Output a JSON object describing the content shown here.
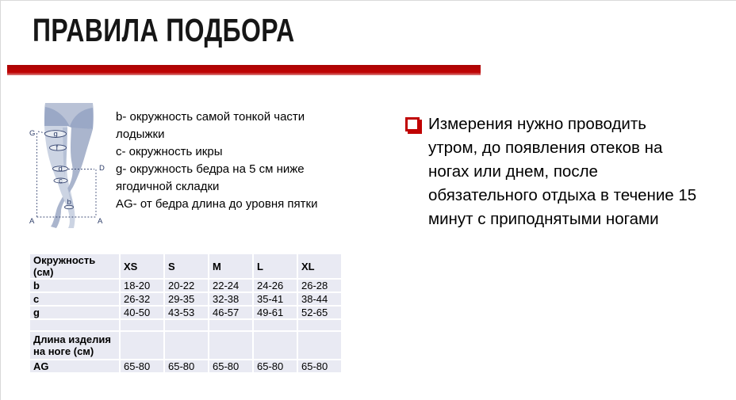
{
  "slide": {
    "title": "ПРАВИЛА ПОДБОРА"
  },
  "colors": {
    "accent_red": "#c00404",
    "bullet_red": "#c00202",
    "table_cell_bg": "#e9eaf3",
    "diagram_navy": "#2c3c68",
    "leg_light": "#ccd4e3",
    "leg_shade": "#aab5cd"
  },
  "diagram": {
    "labels": {
      "G": "G",
      "g": "g",
      "f": "f",
      "d": "d",
      "D": "D",
      "c": "c",
      "b": "b",
      "A_left": "A",
      "A_right": "A"
    }
  },
  "legend": {
    "items": [
      "b- окружность самой тонкой части лодыжки",
      "c- окружность икры",
      "g- окружность бедра на 5 см ниже ягодичной складки",
      "AG- от бедра длина до уровня пятки"
    ]
  },
  "note": {
    "lines": [
      "Измерения нужно проводить",
      "утром, до появления отеков на",
      "ногах или днем, после",
      "обязательного отдыха в течение 15",
      "минут с приподнятыми ногами"
    ]
  },
  "size_table": {
    "headers": [
      "Окружность (см)",
      "XS",
      "S",
      "M",
      "L",
      "XL"
    ],
    "rows": [
      {
        "label": "b",
        "values": [
          "18-20",
          "20-22",
          "22-24",
          "24-26",
          "26-28"
        ]
      },
      {
        "label": "c",
        "values": [
          "26-32",
          "29-35",
          "32-38",
          "35-41",
          "38-44"
        ]
      },
      {
        "label": "g",
        "values": [
          "40-50",
          "43-53",
          "46-57",
          "49-61",
          "52-65"
        ]
      },
      {
        "label": "",
        "values": [
          "",
          "",
          "",
          "",
          ""
        ]
      },
      {
        "label": "Длина изделия на ноге (см)",
        "values": [
          "",
          "",
          "",
          "",
          ""
        ]
      },
      {
        "label": "AG",
        "values": [
          "65-80",
          "65-80",
          "65-80",
          "65-80",
          "65-80"
        ]
      }
    ]
  }
}
